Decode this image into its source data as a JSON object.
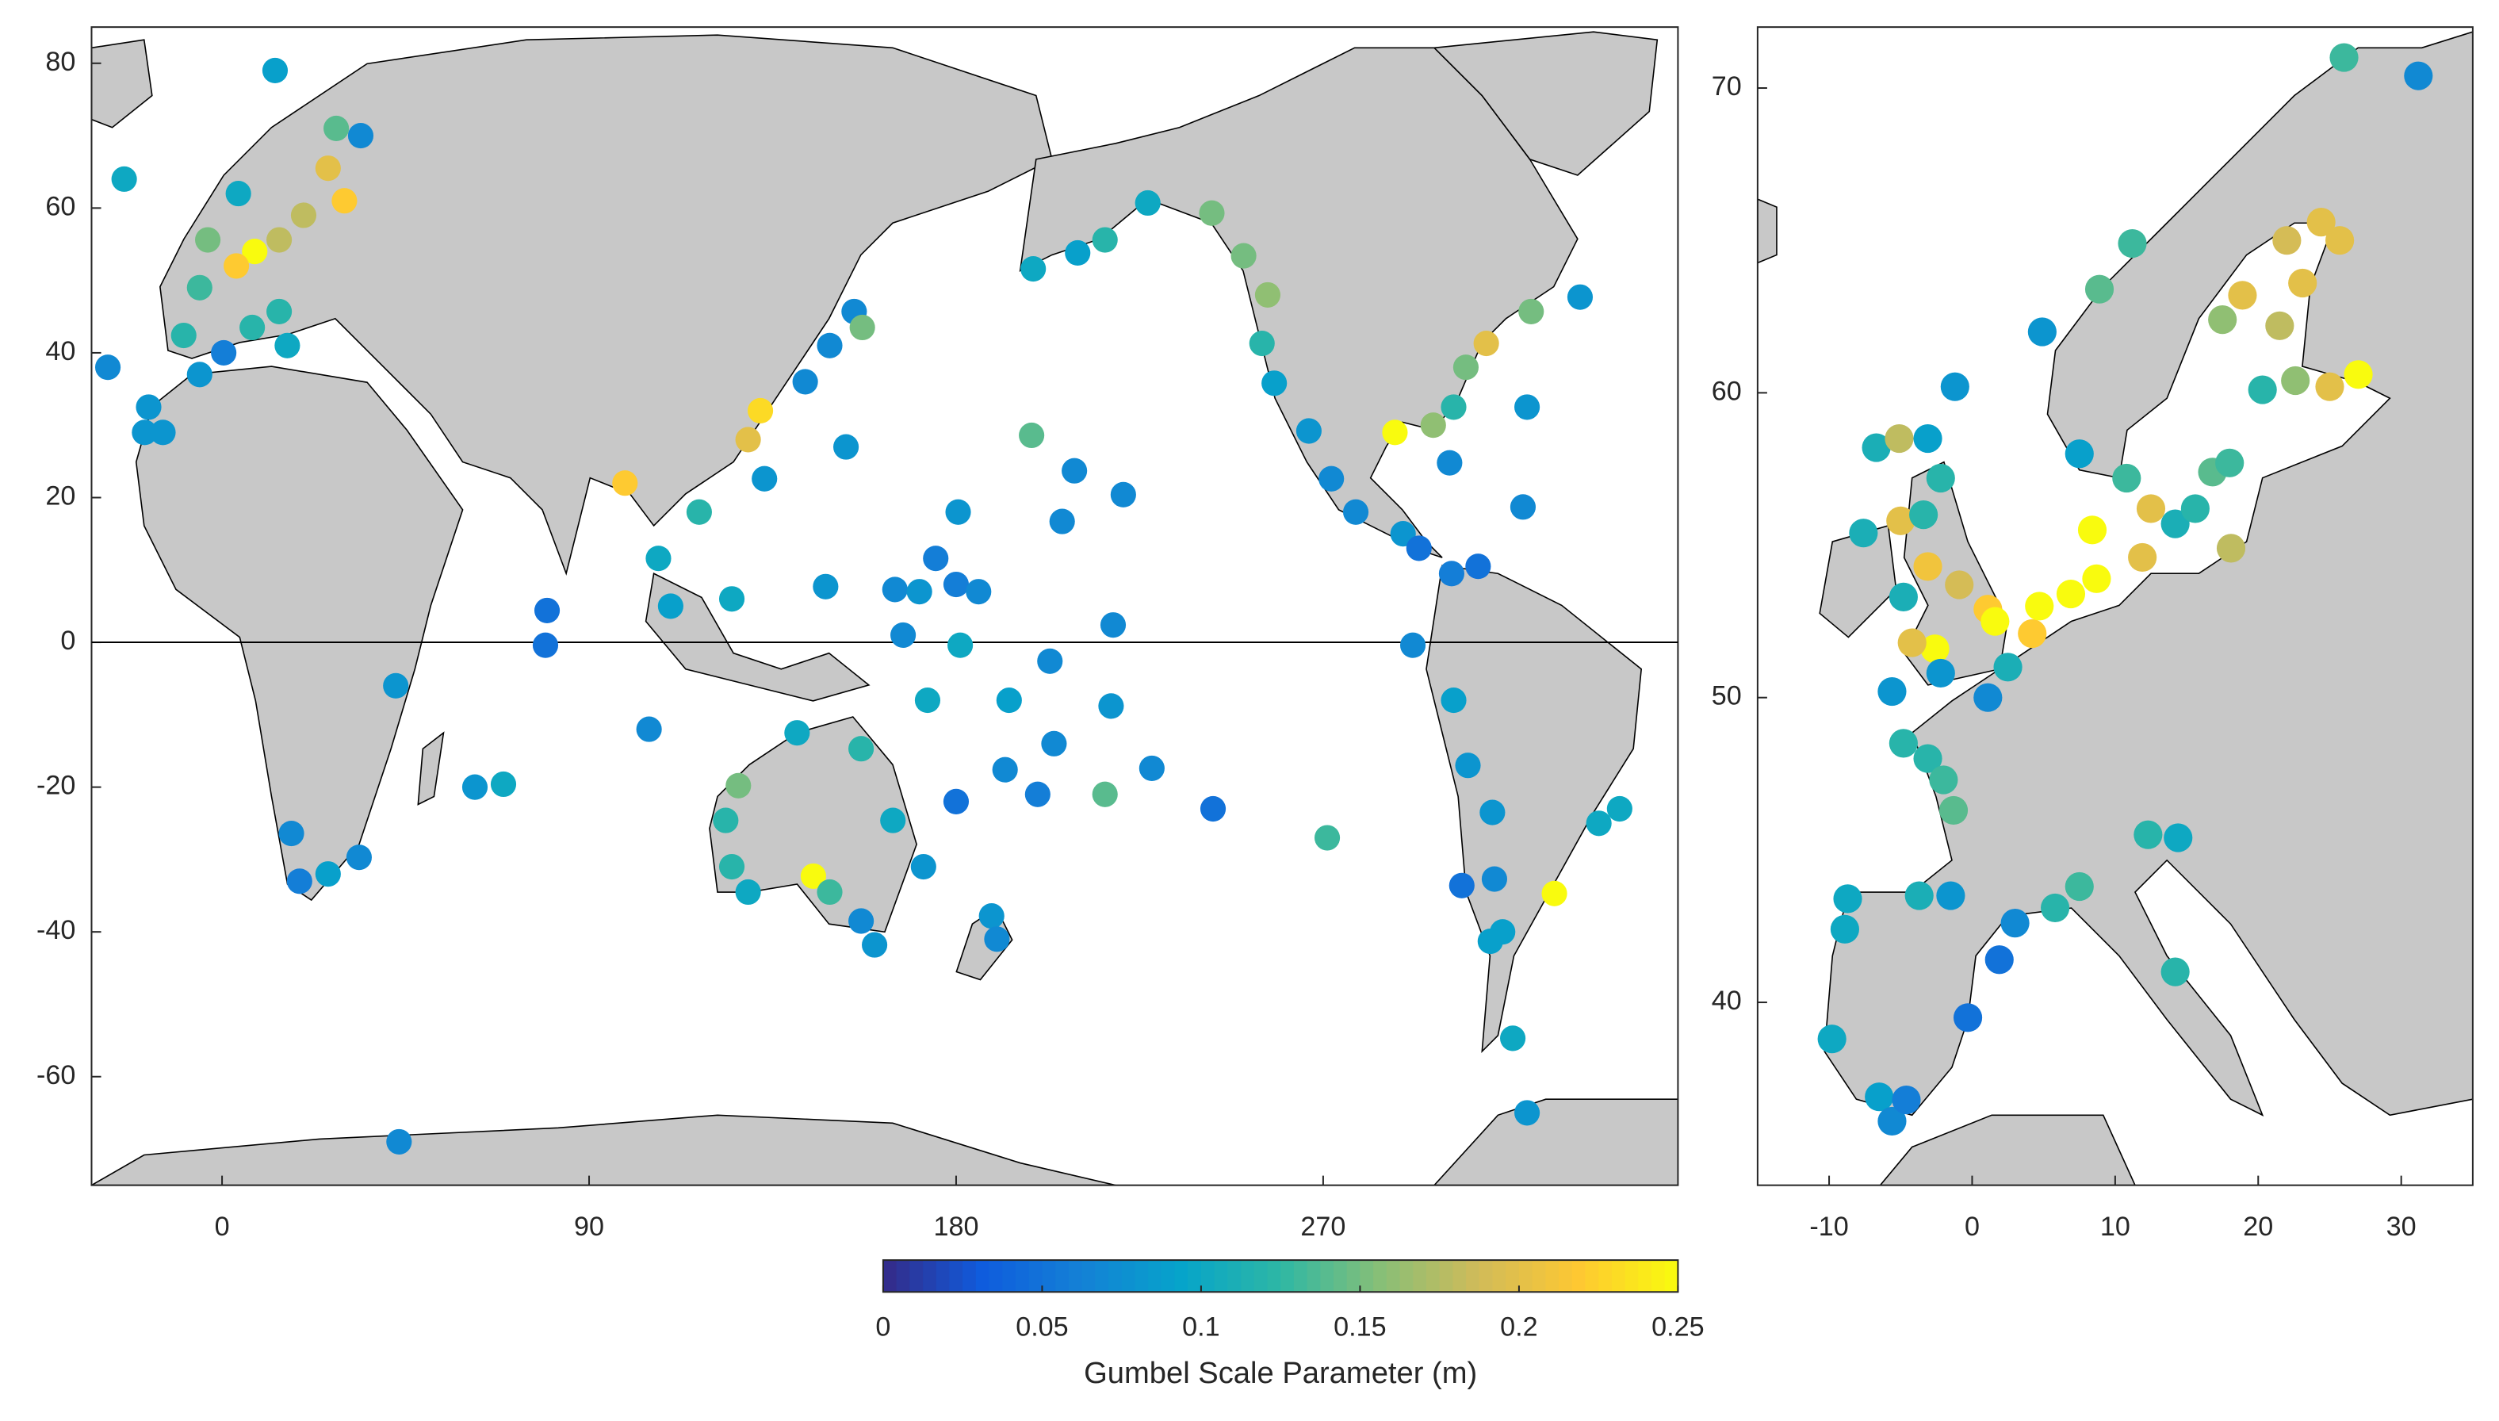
{
  "chart_data": [
    {
      "type": "scatter",
      "map": "world",
      "xlim": [
        -32,
        357
      ],
      "ylim": [
        -75,
        85
      ],
      "xticks": [
        0,
        90,
        180,
        270
      ],
      "yticks": [
        -60,
        -40,
        -20,
        0,
        20,
        40,
        60,
        80
      ],
      "zero_line": true,
      "colorbar": {
        "label": "Gumbel Scale Parameter (m)",
        "lim": [
          0,
          0.25
        ],
        "ticks": [
          0,
          0.05,
          0.1,
          0.15,
          0.2,
          0.25
        ],
        "colormap": [
          "#352a87",
          "#0f5cdd",
          "#1481d6",
          "#06a4ca",
          "#2eb7a4",
          "#87bf77",
          "#d1bb59",
          "#fec832",
          "#f9fb0e"
        ]
      },
      "x": [
        13,
        -24,
        -28,
        -18,
        -19,
        -14.5,
        -3.5,
        8,
        3.5,
        -5.5,
        -9.4,
        -5.5,
        0.4,
        14,
        20,
        26,
        30,
        14,
        16,
        7.4,
        28,
        34,
        4,
        42.6,
        17,
        19,
        26,
        33.6,
        62,
        69,
        79.7,
        79.3,
        104.7,
        98.8,
        107,
        110,
        125,
        129,
        132,
        133,
        117,
        143,
        149,
        155,
        157,
        153,
        198.5,
        209,
        221,
        206,
        180.5,
        175,
        181,
        167,
        148,
        165,
        171,
        180,
        185.5,
        218.5,
        203,
        193,
        218,
        204,
        192,
        200,
        216.5,
        228,
        243,
        271,
        180,
        173,
        126.6,
        123.5,
        125,
        129,
        145,
        149,
        156.7,
        160,
        164.5,
        156.7,
        141,
        172,
        188.7,
        190,
        198.9,
        209.8,
        216.5,
        227,
        242.7,
        250.5,
        256.4,
        255,
        258,
        266.5,
        272,
        278,
        289.6,
        293.5,
        287.6,
        297,
        302,
        305,
        310,
        321,
        333,
        320,
        301,
        319,
        301.5,
        308,
        292,
        302,
        305.5,
        311.5,
        314,
        311,
        316.5,
        320,
        304,
        312,
        326.7,
        337.6,
        342.7,
        43.4
      ],
      "y": [
        79,
        64,
        38,
        32.5,
        29,
        29,
        55.6,
        54,
        52,
        49,
        42.4,
        37,
        40,
        55.6,
        59,
        65.5,
        61,
        45.7,
        41,
        43.5,
        71,
        70,
        62,
        -6,
        -26.4,
        -33,
        -32,
        -29.7,
        -20,
        -19.6,
        4.4,
        -0.4,
        -12,
        22,
        11.6,
        5,
        6,
        28,
        32,
        22.6,
        18,
        36,
        41,
        45.7,
        43.5,
        27,
        28.6,
        23.7,
        20.4,
        16.7,
        18,
        11.6,
        -0.4,
        1,
        7.7,
        7.3,
        7,
        8,
        7,
        2.4,
        -2.6,
        -8,
        -8.8,
        -14,
        -17.6,
        -21,
        -21,
        -17.4,
        -23,
        -27,
        -22,
        -8,
        -19.8,
        -24.6,
        -31,
        -34.5,
        -32.3,
        -34.5,
        -38.5,
        -41.8,
        -24.6,
        -14.7,
        -12.5,
        -31,
        -37.8,
        -41,
        51.6,
        53.8,
        55.6,
        60.7,
        59.3,
        53.4,
        48,
        41.3,
        35.8,
        29.2,
        22.6,
        18,
        15,
        13,
        29,
        30,
        32.5,
        38,
        41.3,
        45.7,
        47.7,
        32.5,
        24.8,
        18.7,
        9.5,
        10.5,
        -0.4,
        -8,
        -17,
        -23.5,
        -40,
        -41.3,
        -54.7,
        -65,
        -33.6,
        -32.7,
        -34.7,
        -25,
        -23,
        -69
      ],
      "values": [
        0.09,
        0.1,
        0.07,
        0.08,
        0.08,
        0.08,
        0.15,
        0.25,
        0.22,
        0.13,
        0.12,
        0.08,
        0.06,
        0.18,
        0.18,
        0.2,
        0.22,
        0.12,
        0.1,
        0.12,
        0.14,
        0.07,
        0.1,
        0.08,
        0.07,
        0.06,
        0.09,
        0.07,
        0.08,
        0.1,
        0.05,
        0.05,
        0.07,
        0.22,
        0.1,
        0.09,
        0.1,
        0.2,
        0.23,
        0.08,
        0.12,
        0.07,
        0.07,
        0.07,
        0.15,
        0.08,
        0.14,
        0.07,
        0.07,
        0.07,
        0.08,
        0.06,
        0.1,
        0.07,
        0.08,
        0.07,
        0.08,
        0.06,
        0.07,
        0.07,
        0.07,
        0.09,
        0.08,
        0.07,
        0.07,
        0.06,
        0.14,
        0.07,
        0.05,
        0.13,
        0.05,
        0.1,
        0.15,
        0.12,
        0.12,
        0.1,
        0.25,
        0.13,
        0.07,
        0.08,
        0.1,
        0.12,
        0.1,
        0.08,
        0.08,
        0.07,
        0.1,
        0.09,
        0.12,
        0.1,
        0.15,
        0.15,
        0.16,
        0.12,
        0.09,
        0.08,
        0.07,
        0.07,
        0.08,
        0.05,
        0.25,
        0.16,
        0.12,
        0.15,
        0.2,
        0.15,
        0.08,
        0.08,
        0.07,
        0.07,
        0.06,
        0.05,
        0.07,
        0.09,
        0.08,
        0.08,
        0.09,
        0.09,
        0.1,
        0.08,
        0.05,
        0.07,
        0.25,
        0.1,
        0.1,
        0.07
      ]
    },
    {
      "type": "scatter",
      "map": "europe",
      "xlim": [
        -15,
        35
      ],
      "ylim": [
        34,
        72
      ],
      "xticks": [
        -10,
        0,
        10,
        20,
        30
      ],
      "yticks": [
        40,
        50,
        60,
        70
      ],
      "x": [
        26,
        31.2,
        11.2,
        8.9,
        4.9,
        -1.2,
        7.5,
        -6.7,
        -5.1,
        -3.1,
        -7.6,
        -5,
        -3.4,
        -2.2,
        -4.8,
        -3.1,
        -0.9,
        1.1,
        1.6,
        -2.6,
        -4.2,
        -5.6,
        -2.2,
        1.1,
        2.5,
        -4.8,
        -3.1,
        -2,
        -1.3,
        4.2,
        4.7,
        6.9,
        8.7,
        8.4,
        10.8,
        12.5,
        11.9,
        14.2,
        15.6,
        16.8,
        18,
        18.1,
        20.3,
        22,
        24.4,
        25.7,
        18.9,
        17.5,
        21.5,
        22.6,
        25,
        27,
        23.1,
        -8.7,
        -8.9,
        -9.8,
        -6.5,
        -5.6,
        -4.6,
        -3.7,
        -1.5,
        -0.3,
        1.9,
        3,
        5.8,
        7.5,
        12.3,
        14.4,
        14.2
      ],
      "y": [
        71,
        70.4,
        64.9,
        63.4,
        62,
        60.2,
        58,
        58.2,
        58.5,
        58.5,
        55.4,
        55.8,
        56,
        57.2,
        53.3,
        54.3,
        53.7,
        52.9,
        52.5,
        51.6,
        51.8,
        50.2,
        50.8,
        50,
        51,
        48.5,
        48,
        47.3,
        46.3,
        52.1,
        53,
        53.4,
        53.9,
        55.5,
        57.2,
        56.2,
        54.6,
        55.7,
        56.2,
        57.4,
        57.7,
        54.9,
        60.1,
        65,
        65.6,
        65,
        63.2,
        62.4,
        62.2,
        60.4,
        60.2,
        60.6,
        63.6,
        43.4,
        42.4,
        38.8,
        36.9,
        36.1,
        36.8,
        43.5,
        43.5,
        39.5,
        41.4,
        42.6,
        43.1,
        43.8,
        45.5,
        45.4,
        41
      ],
      "values": [
        0.13,
        0.07,
        0.13,
        0.14,
        0.08,
        0.08,
        0.09,
        0.11,
        0.18,
        0.09,
        0.11,
        0.2,
        0.12,
        0.12,
        0.11,
        0.21,
        0.19,
        0.22,
        0.25,
        0.25,
        0.2,
        0.08,
        0.08,
        0.07,
        0.11,
        0.12,
        0.12,
        0.13,
        0.14,
        0.22,
        0.25,
        0.25,
        0.25,
        0.25,
        0.13,
        0.2,
        0.2,
        0.11,
        0.12,
        0.14,
        0.13,
        0.18,
        0.12,
        0.19,
        0.2,
        0.2,
        0.2,
        0.16,
        0.18,
        0.16,
        0.2,
        0.25,
        0.2,
        0.1,
        0.1,
        0.1,
        0.09,
        0.07,
        0.06,
        0.11,
        0.08,
        0.05,
        0.05,
        0.07,
        0.12,
        0.13,
        0.12,
        0.1,
        0.12
      ]
    }
  ]
}
